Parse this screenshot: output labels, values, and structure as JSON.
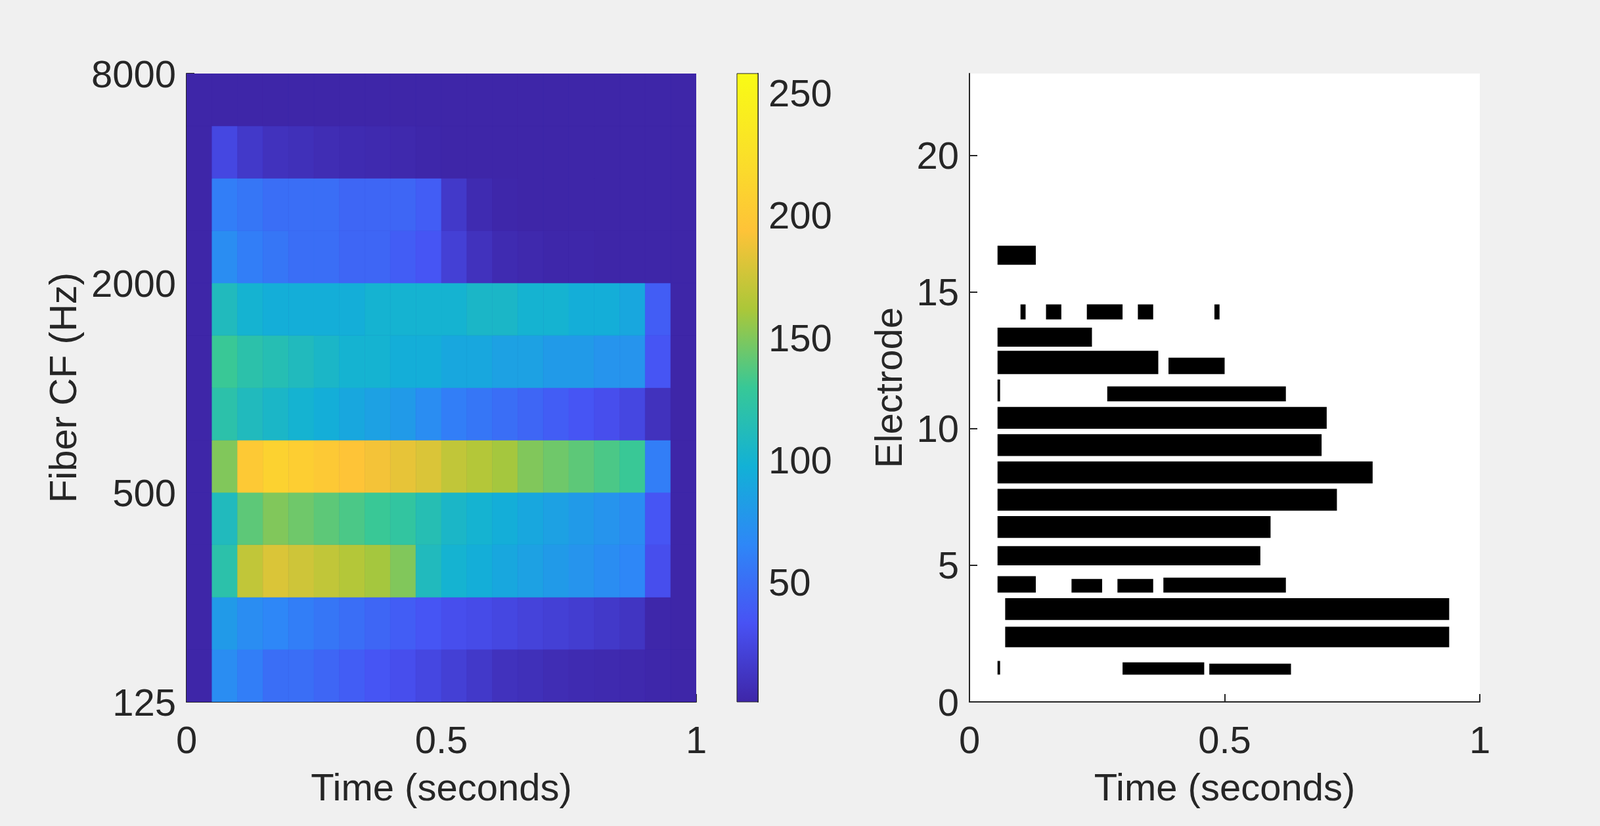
{
  "chart_data": [
    {
      "type": "heatmap",
      "xlabel": "Time (seconds)",
      "ylabel": "Fiber CF (Hz)",
      "xlim": [
        0,
        1
      ],
      "xticks": [
        0,
        0.5,
        1
      ],
      "ylim": [
        125,
        8000
      ],
      "yticks": [
        125,
        500,
        2000,
        8000
      ],
      "log": "y",
      "grid": false,
      "time_edges": [
        0,
        0.05,
        0.1,
        0.15,
        0.2,
        0.25,
        0.3,
        0.35,
        0.4,
        0.45,
        0.5,
        0.55,
        0.6,
        0.65,
        0.7,
        0.75,
        0.8,
        0.85,
        0.9,
        0.95,
        1
      ],
      "cf_edges": [
        125,
        177,
        250,
        354,
        500,
        707,
        1000,
        1414,
        2000,
        2828,
        4000,
        5657,
        8000
      ],
      "cells": [
        [
          1,
          70,
          60,
          50,
          50,
          45,
          40,
          35,
          30,
          25,
          20,
          15,
          10,
          8,
          6,
          5,
          4,
          3,
          2,
          1
        ],
        [
          1,
          80,
          70,
          65,
          60,
          55,
          50,
          45,
          40,
          35,
          30,
          28,
          25,
          22,
          20,
          18,
          15,
          12,
          2,
          1
        ],
        [
          1,
          120,
          170,
          180,
          175,
          170,
          165,
          160,
          150,
          110,
          100,
          95,
          90,
          85,
          80,
          75,
          70,
          65,
          30,
          1
        ],
        [
          1,
          110,
          140,
          150,
          145,
          140,
          135,
          130,
          125,
          115,
          105,
          100,
          95,
          90,
          85,
          80,
          75,
          70,
          35,
          1
        ],
        [
          1,
          150,
          200,
          210,
          205,
          200,
          195,
          190,
          185,
          180,
          170,
          165,
          160,
          150,
          145,
          140,
          135,
          130,
          60,
          1
        ],
        [
          1,
          120,
          110,
          105,
          100,
          95,
          90,
          85,
          80,
          70,
          60,
          55,
          50,
          45,
          40,
          35,
          30,
          25,
          10,
          1
        ],
        [
          1,
          130,
          120,
          115,
          110,
          105,
          100,
          100,
          95,
          95,
          90,
          90,
          85,
          85,
          80,
          80,
          75,
          75,
          35,
          1
        ],
        [
          1,
          110,
          100,
          95,
          95,
          95,
          95,
          100,
          100,
          100,
          100,
          105,
          105,
          100,
          100,
          95,
          95,
          90,
          40,
          1
        ],
        [
          1,
          70,
          60,
          55,
          50,
          50,
          45,
          45,
          40,
          35,
          20,
          10,
          5,
          3,
          2,
          2,
          1,
          1,
          1,
          1
        ],
        [
          1,
          60,
          55,
          50,
          50,
          50,
          45,
          45,
          45,
          40,
          15,
          5,
          2,
          1,
          1,
          1,
          1,
          1,
          1,
          1
        ],
        [
          1,
          25,
          15,
          10,
          8,
          6,
          5,
          4,
          3,
          2,
          1,
          1,
          1,
          1,
          1,
          1,
          1,
          1,
          1,
          1
        ],
        [
          1,
          1,
          1,
          1,
          1,
          1,
          1,
          1,
          1,
          1,
          1,
          1,
          1,
          1,
          1,
          1,
          1,
          1,
          1,
          1
        ]
      ],
      "colorbar": {
        "clim": [
          1,
          258
        ],
        "ticks": [
          50,
          100,
          150,
          200,
          250
        ]
      }
    },
    {
      "type": "raster",
      "xlabel": "Time (seconds)",
      "ylabel": "Electrode",
      "xlim": [
        0,
        1
      ],
      "xticks": [
        0,
        0.5,
        1
      ],
      "ylim": [
        0,
        23
      ],
      "yticks": [
        0,
        5,
        10,
        15,
        20
      ],
      "grid": false,
      "color": "#000000",
      "segments": [
        {
          "electrode": 1,
          "start": 0.055,
          "end": 0.06,
          "height": 0.5
        },
        {
          "electrode": 1,
          "start": 0.3,
          "end": 0.46,
          "height": 0.45
        },
        {
          "electrode": 1,
          "start": 0.47,
          "end": 0.63,
          "height": 0.4
        },
        {
          "electrode": 2,
          "start": 0.07,
          "end": 0.94,
          "height": 0.75
        },
        {
          "electrode": 3,
          "start": 0.07,
          "end": 0.94,
          "height": 0.8
        },
        {
          "electrode": 4,
          "start": 0.055,
          "end": 0.13,
          "height": 0.6
        },
        {
          "electrode": 4,
          "start": 0.2,
          "end": 0.26,
          "height": 0.5
        },
        {
          "electrode": 4,
          "start": 0.29,
          "end": 0.36,
          "height": 0.5
        },
        {
          "electrode": 4,
          "start": 0.38,
          "end": 0.62,
          "height": 0.55
        },
        {
          "electrode": 5,
          "start": 0.055,
          "end": 0.57,
          "height": 0.7
        },
        {
          "electrode": 6,
          "start": 0.055,
          "end": 0.59,
          "height": 0.8
        },
        {
          "electrode": 7,
          "start": 0.055,
          "end": 0.72,
          "height": 0.8
        },
        {
          "electrode": 8,
          "start": 0.055,
          "end": 0.79,
          "height": 0.8
        },
        {
          "electrode": 9,
          "start": 0.055,
          "end": 0.69,
          "height": 0.8
        },
        {
          "electrode": 10,
          "start": 0.055,
          "end": 0.7,
          "height": 0.8
        },
        {
          "electrode": 11,
          "start": 0.055,
          "end": 0.06,
          "height": 0.8
        },
        {
          "electrode": 11,
          "start": 0.27,
          "end": 0.62,
          "height": 0.55
        },
        {
          "electrode": 12,
          "start": 0.055,
          "end": 0.37,
          "height": 0.85
        },
        {
          "electrode": 12,
          "start": 0.39,
          "end": 0.5,
          "height": 0.6
        },
        {
          "electrode": 13,
          "start": 0.055,
          "end": 0.24,
          "height": 0.7
        },
        {
          "electrode": 14,
          "start": 0.1,
          "end": 0.11,
          "height": 0.55
        },
        {
          "electrode": 14,
          "start": 0.15,
          "end": 0.18,
          "height": 0.55
        },
        {
          "electrode": 14,
          "start": 0.23,
          "end": 0.3,
          "height": 0.55
        },
        {
          "electrode": 14,
          "start": 0.33,
          "end": 0.36,
          "height": 0.55
        },
        {
          "electrode": 14,
          "start": 0.48,
          "end": 0.49,
          "height": 0.55
        },
        {
          "electrode": 16,
          "start": 0.055,
          "end": 0.13,
          "height": 0.7
        }
      ]
    }
  ]
}
